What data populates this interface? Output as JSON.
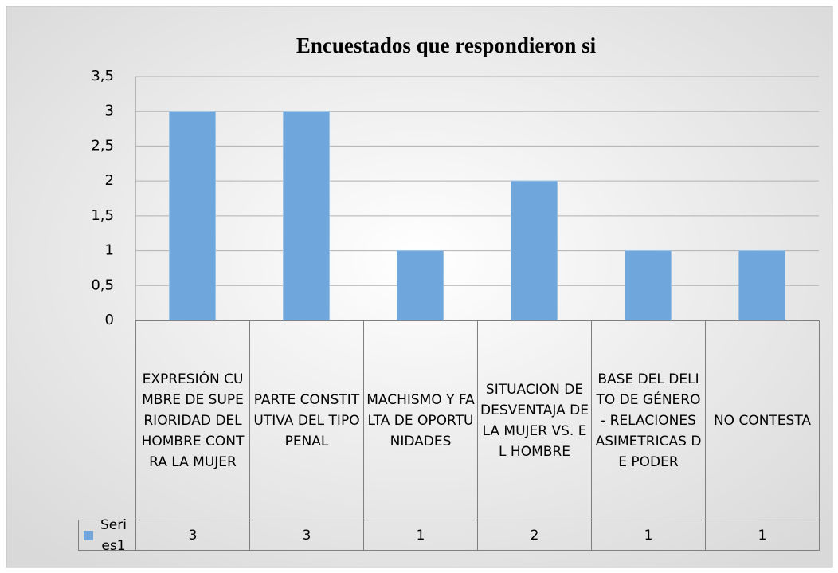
{
  "chart_data": {
    "type": "bar",
    "title": "Encuestados que respondieron si",
    "categories": [
      "EXPRESIÓN CUMBRE DE SUPERIORIDAD DEL HOMBRE CONTRA LA MUJER",
      "PARTE CONSTITUTIVA DEL TIPO PENAL",
      "MACHISMO Y FALTA DE OPORTUNIDADES",
      "SITUACION DE DESVENTAJA DE LA MUJER VS. EL HOMBRE",
      "BASE DEL DELITO DE GÉNERO - RELACIONES ASIMETRICAS DE PODER",
      "NO CONTESTA"
    ],
    "series": [
      {
        "name": "Series1",
        "color": "#6fa7dc",
        "values": [
          3,
          3,
          1,
          2,
          1,
          1
        ]
      }
    ],
    "ylim": [
      0,
      3.5
    ],
    "yticks": [
      0,
      {
        "value": 0.5,
        "label": "0,5"
      },
      1,
      {
        "value": 1.5,
        "label": "1,5"
      },
      2,
      {
        "value": 2.5,
        "label": "2,5"
      },
      3,
      {
        "value": 3.5,
        "label": "3,5"
      }
    ],
    "grid": true,
    "data_table": true
  }
}
